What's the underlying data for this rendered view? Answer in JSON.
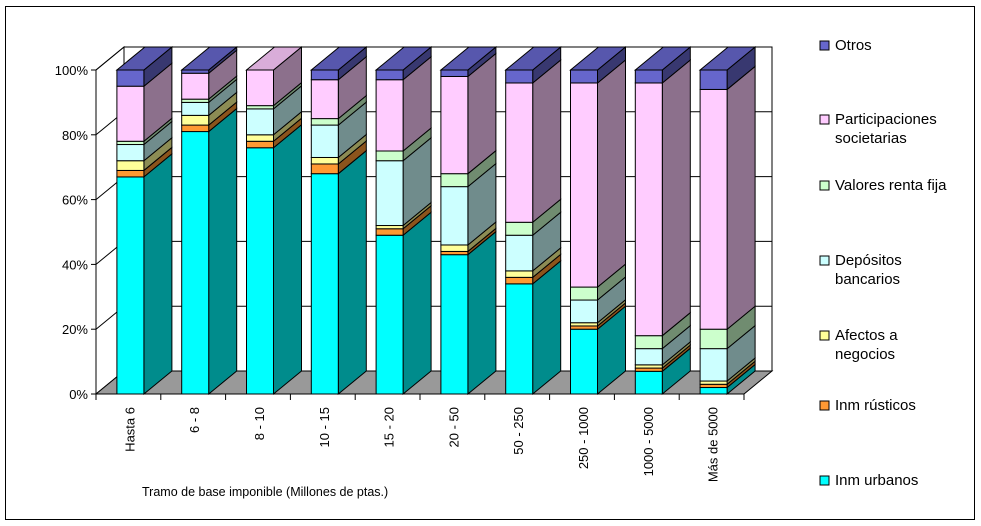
{
  "chart_data": {
    "type": "bar",
    "stacked": true,
    "percent": true,
    "three_d": true,
    "title": "",
    "xlabel": "Tramo de base imponible (Millones de ptas.)",
    "ylabel": "",
    "ylim": [
      0,
      100
    ],
    "yticks": [
      "0%",
      "20%",
      "40%",
      "60%",
      "80%",
      "100%"
    ],
    "grid": true,
    "legend_position": "right",
    "categories": [
      "Hasta 6",
      "6 - 8",
      "8 - 10",
      "10 - 15",
      "15 - 20",
      "20 - 50",
      "50 - 250",
      "250 - 1000",
      "1000 - 5000",
      "Más de 5000"
    ],
    "series": [
      {
        "name": "Inm urbanos",
        "color": "#00ffff",
        "values": [
          67,
          81,
          76,
          68,
          49,
          43,
          34,
          20,
          7,
          2
        ]
      },
      {
        "name": "Inm rústicos",
        "color": "#ff9933",
        "values": [
          2,
          2,
          2,
          3,
          2,
          1,
          2,
          1,
          1,
          1
        ]
      },
      {
        "name": "Afectos a negocios",
        "color": "#ffff99",
        "values": [
          3,
          3,
          2,
          2,
          1,
          2,
          2,
          1,
          1,
          1
        ]
      },
      {
        "name": "Depósitos bancarios",
        "color": "#ccffff",
        "values": [
          5,
          4,
          8,
          10,
          20,
          18,
          11,
          7,
          5,
          10
        ]
      },
      {
        "name": "Valores renta fija",
        "color": "#ccffcc",
        "values": [
          1,
          1,
          1,
          2,
          3,
          4,
          4,
          4,
          4,
          6
        ]
      },
      {
        "name": "Participaciones societarias",
        "color": "#ffccff",
        "values": [
          17,
          8,
          11,
          12,
          22,
          30,
          43,
          63,
          78,
          74
        ]
      },
      {
        "name": "Otros",
        "color": "#6666cc",
        "values": [
          5,
          1,
          0,
          3,
          3,
          2,
          4,
          4,
          4,
          6
        ]
      }
    ]
  },
  "legend": {
    "items": [
      {
        "label_lines": [
          "Otros"
        ],
        "color": "#6666cc"
      },
      {
        "label_lines": [
          "Participaciones",
          "societarias"
        ],
        "color": "#ffccff"
      },
      {
        "label_lines": [
          "Valores renta fija"
        ],
        "color": "#ccffcc"
      },
      {
        "label_lines": [
          "Depósitos",
          "bancarios"
        ],
        "color": "#ccffff"
      },
      {
        "label_lines": [
          "Afectos a",
          "negocios"
        ],
        "color": "#ffff99"
      },
      {
        "label_lines": [
          "Inm rústicos"
        ],
        "color": "#ff9933"
      },
      {
        "label_lines": [
          "Inm urbanos"
        ],
        "color": "#00ffff"
      }
    ]
  },
  "colors": {
    "wall": "#ffffff",
    "floor": "#999999",
    "grid": "#000000"
  }
}
